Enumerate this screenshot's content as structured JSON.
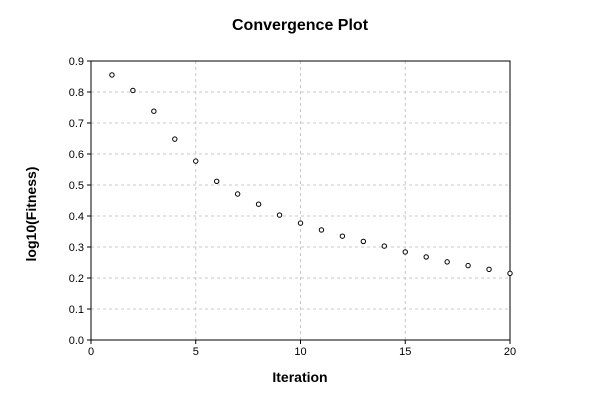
{
  "chart_data": {
    "type": "scatter",
    "title": "Convergence Plot",
    "xlabel": "Iteration",
    "ylabel": "log10(Fitness)",
    "xlim": [
      0,
      20
    ],
    "ylim": [
      0,
      0.9
    ],
    "xticks": [
      0,
      5,
      10,
      15,
      20
    ],
    "yticks": [
      0.0,
      0.1,
      0.2,
      0.3,
      0.4,
      0.5,
      0.6,
      0.7,
      0.8,
      0.9
    ],
    "xtick_labels": [
      "0",
      "5",
      "10",
      "15",
      "20"
    ],
    "ytick_labels": [
      "0.0",
      "0.1",
      "0.2",
      "0.3",
      "0.4",
      "0.5",
      "0.6",
      "0.7",
      "0.8",
      "0.9"
    ],
    "grid": true,
    "marker": "hollow-circle",
    "series": [
      {
        "x": [
          1,
          2,
          3,
          4,
          5,
          6,
          7,
          8,
          9,
          10,
          11,
          12,
          13,
          14,
          15,
          16,
          17,
          18,
          19,
          20
        ],
        "y": [
          0.855,
          0.805,
          0.738,
          0.648,
          0.577,
          0.512,
          0.471,
          0.438,
          0.403,
          0.377,
          0.355,
          0.335,
          0.318,
          0.303,
          0.284,
          0.268,
          0.252,
          0.24,
          0.228,
          0.215
        ]
      }
    ],
    "colors": {
      "marker_stroke": "#000000",
      "marker_fill": "#ffffff",
      "grid": "#c8c8c8",
      "frame": "#000000"
    }
  }
}
